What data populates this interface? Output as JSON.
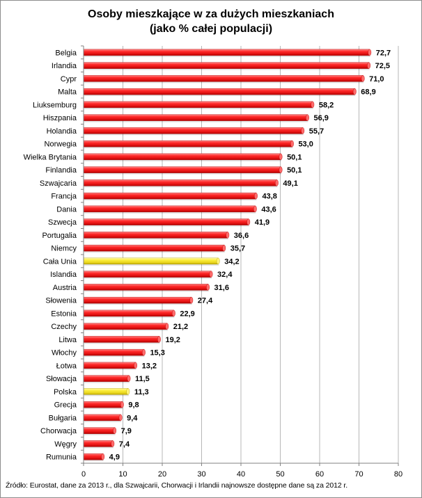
{
  "chart_data": {
    "type": "bar",
    "orientation": "horizontal",
    "title": [
      "Osoby mieszkające w za dużych mieszkaniach",
      "(jako % całej populacji)"
    ],
    "categories": [
      "Belgia",
      "Irlandia",
      "Cypr",
      "Malta",
      "Liuksemburg",
      "Hiszpania",
      "Holandia",
      "Norwegia",
      "Wielka Brytania",
      "Finlandia",
      "Szwajcaria",
      "Francja",
      "Dania",
      "Szwecja",
      "Portugalia",
      "Niemcy",
      "Cała Unia",
      "Islandia",
      "Austria",
      "Słowenia",
      "Estonia",
      "Czechy",
      "Litwa",
      "Włochy",
      "Łotwa",
      "Słowacja",
      "Polska",
      "Grecja",
      "Bułgaria",
      "Chorwacja",
      "Węgry",
      "Rumunia"
    ],
    "values": [
      72.7,
      72.5,
      71.0,
      68.9,
      58.2,
      56.9,
      55.7,
      53.0,
      50.1,
      50.1,
      49.1,
      43.8,
      43.6,
      41.9,
      36.6,
      35.7,
      34.2,
      32.4,
      31.6,
      27.4,
      22.9,
      21.2,
      19.2,
      15.3,
      13.2,
      11.5,
      11.3,
      9.8,
      9.4,
      7.9,
      7.4,
      4.9
    ],
    "value_labels": [
      "72,7",
      "72,5",
      "71,0",
      "68,9",
      "58,2",
      "56,9",
      "55,7",
      "53,0",
      "50,1",
      "50,1",
      "49,1",
      "43,8",
      "43,6",
      "41,9",
      "36,6",
      "35,7",
      "34,2",
      "32,4",
      "31,6",
      "27,4",
      "22,9",
      "21,2",
      "19,2",
      "15,3",
      "13,2",
      "11,5",
      "11,3",
      "9,8",
      "9,4",
      "7,9",
      "7,4",
      "4,9"
    ],
    "highlighted": [
      "Cała Unia",
      "Polska"
    ],
    "xlim": [
      0,
      80
    ],
    "xticks": [
      0,
      10,
      20,
      30,
      40,
      50,
      60,
      70,
      80
    ],
    "grid": "vertical",
    "colors": {
      "bar": "#ee1c1c",
      "highlight": "#f2e32a",
      "grid": "#b7b7b7"
    }
  },
  "source": "Źródło: Eurostat, dane za 2013 r., dla Szwajcarii, Chorwacji i Irlandii najnowsze dostępne dane są za 2012 r."
}
